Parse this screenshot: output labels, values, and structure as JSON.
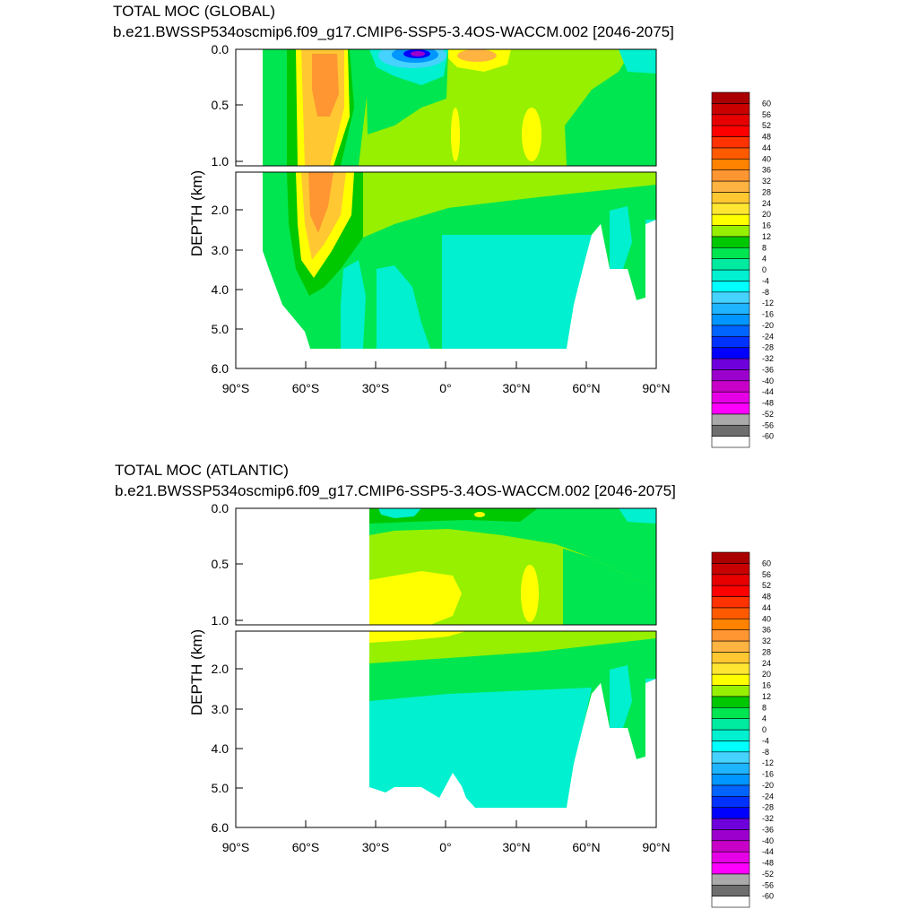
{
  "colors": {
    "levels": [
      -60,
      -56,
      -52,
      -48,
      -44,
      -40,
      -36,
      -32,
      -28,
      -24,
      -20,
      -16,
      -12,
      -8,
      -4,
      0,
      4,
      8,
      12,
      16,
      20,
      24,
      28,
      32,
      36,
      40,
      44,
      48,
      52,
      56,
      60
    ],
    "palette": [
      "#ffffff",
      "#6e6e6e",
      "#aaaaaa",
      "#ff00ff",
      "#e600e6",
      "#c800c8",
      "#9b00cd",
      "#6e00dc",
      "#0000ff",
      "#0032ff",
      "#0064ff",
      "#0096ff",
      "#1eb4ff",
      "#46d2ff",
      "#00ffff",
      "#00f0d0",
      "#00eba0",
      "#00e650",
      "#00c800",
      "#96f000",
      "#ffff00",
      "#ffe632",
      "#ffc832",
      "#ffb441",
      "#ff9632",
      "#ff8200",
      "#ff5a00",
      "#ff3200",
      "#ff0000",
      "#e60000",
      "#c80000",
      "#aa0000"
    ],
    "ocean": "#00f0d0"
  },
  "charts": [
    {
      "title": "TOTAL MOC (GLOBAL)",
      "subtitle": "b.e21.BWSSP534oscmip6.f09_g17.CMIP6-SSP5-3.4OS-WACCM.002 [2046-2075]",
      "ylabel": "DEPTH (km)"
    },
    {
      "title": "TOTAL MOC (ATLANTIC)",
      "subtitle": "b.e21.BWSSP534oscmip6.f09_g17.CMIP6-SSP5-3.4OS-WACCM.002 [2046-2075]",
      "ylabel": "DEPTH (km)"
    }
  ],
  "chart_data": [
    {
      "type": "heatmap",
      "title": "TOTAL MOC (GLOBAL)",
      "subtitle": "b.e21.BWSSP534oscmip6.f09_g17.CMIP6-SSP5-3.4OS-WACCM.002 [2046-2075]",
      "ylabel": "DEPTH (km)",
      "x_ticks": [
        "90°S",
        "60°S",
        "30°S",
        "0°",
        "30°N",
        "60°N",
        "90°N"
      ],
      "y_ticks_upper": [
        "0.0",
        "0.5",
        "1.0"
      ],
      "y_ticks_lower": [
        "2.0",
        "3.0",
        "4.0",
        "5.0",
        "6.0"
      ],
      "x_range": [
        -90,
        90
      ],
      "y_range_upper_km": [
        0,
        1
      ],
      "y_range_lower_km": [
        1,
        6
      ],
      "colorbar_labels": [
        "60",
        "56",
        "52",
        "48",
        "44",
        "40",
        "36",
        "32",
        "28",
        "24",
        "20",
        "16",
        "12",
        "8",
        "4",
        "0",
        "-4",
        "-8",
        "-12",
        "-16",
        "-20",
        "-24",
        "-28",
        "-32",
        "-36",
        "-40",
        "-44",
        "-48",
        "-52",
        "-56",
        "-60"
      ]
    },
    {
      "type": "heatmap",
      "title": "TOTAL MOC (ATLANTIC)",
      "subtitle": "b.e21.BWSSP534oscmip6.f09_g17.CMIP6-SSP5-3.4OS-WACCM.002 [2046-2075]",
      "ylabel": "DEPTH (km)",
      "x_ticks": [
        "90°S",
        "60°S",
        "30°S",
        "0°",
        "30°N",
        "60°N",
        "90°N"
      ],
      "y_ticks_upper": [
        "0.0",
        "0.5",
        "1.0"
      ],
      "y_ticks_lower": [
        "2.0",
        "3.0",
        "4.0",
        "5.0",
        "6.0"
      ],
      "x_range": [
        -90,
        90
      ],
      "y_range_upper_km": [
        0,
        1
      ],
      "y_range_lower_km": [
        1,
        6
      ],
      "colorbar_labels": [
        "60",
        "56",
        "52",
        "48",
        "44",
        "40",
        "36",
        "32",
        "28",
        "24",
        "20",
        "16",
        "12",
        "8",
        "4",
        "0",
        "-4",
        "-8",
        "-12",
        "-16",
        "-20",
        "-24",
        "-28",
        "-32",
        "-36",
        "-40",
        "-44",
        "-48",
        "-52",
        "-56",
        "-60"
      ]
    }
  ]
}
